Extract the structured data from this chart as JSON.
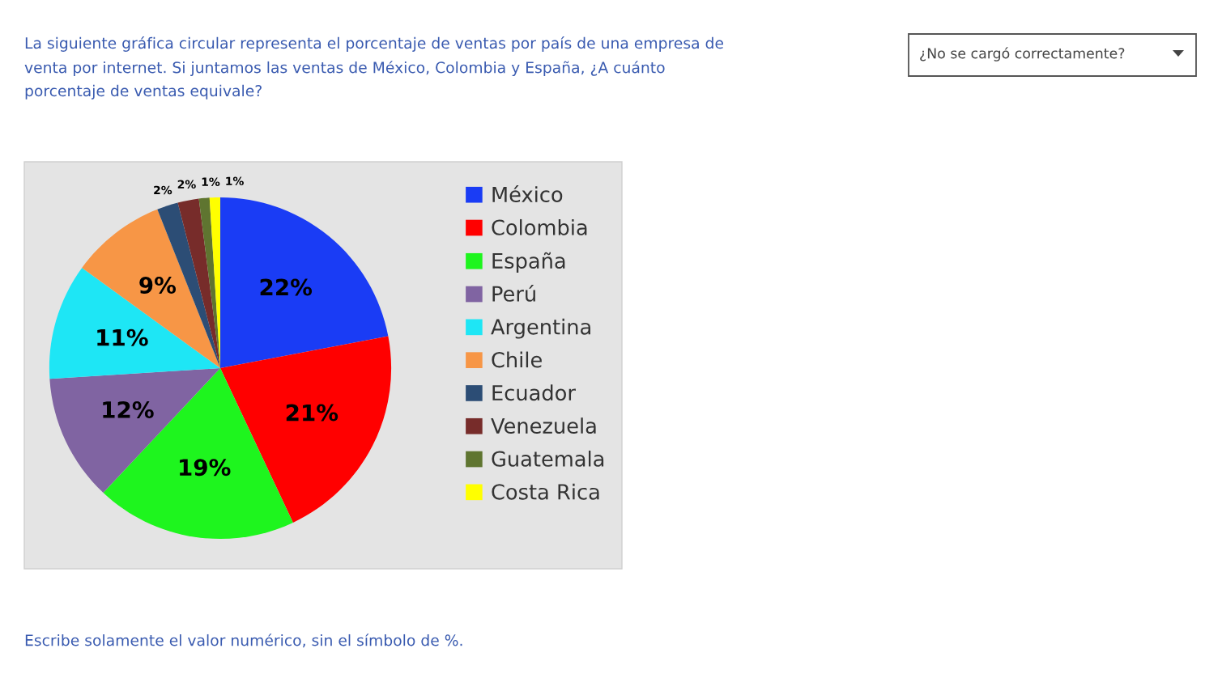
{
  "chart_data": {
    "type": "pie",
    "title": "La siguiente gráfica circular representa el porcentaje de ventas por país de una empresa de\nventa por internet. Si juntamos las ventas de México, Colombia y España, ¿A cuánto\nporcentaje de ventas equivale?",
    "categories": [
      "México",
      "Colombia",
      "España",
      "Perú",
      "Argentina",
      "Chile",
      "Ecuador",
      "Venezuela",
      "Guatemala",
      "Costa Rica"
    ],
    "values": [
      22,
      21,
      19,
      12,
      11,
      9,
      2,
      2,
      1,
      1
    ],
    "colors": [
      "#1a3cf5",
      "#ff0000",
      "#1ef51e",
      "#8064a2",
      "#1ee6f5",
      "#f79646",
      "#2c4d75",
      "#772c2a",
      "#5f7530",
      "#ffff00"
    ],
    "value_labels": [
      "22%",
      "21%",
      "19%",
      "12%",
      "11%",
      "9%",
      "2%",
      "2%",
      "1%",
      "1%"
    ],
    "legend": "right",
    "annotations": [
      "¿No se cargó correctamente?",
      "Escribe solamente el valor numérico, sin el símbolo de %."
    ]
  }
}
